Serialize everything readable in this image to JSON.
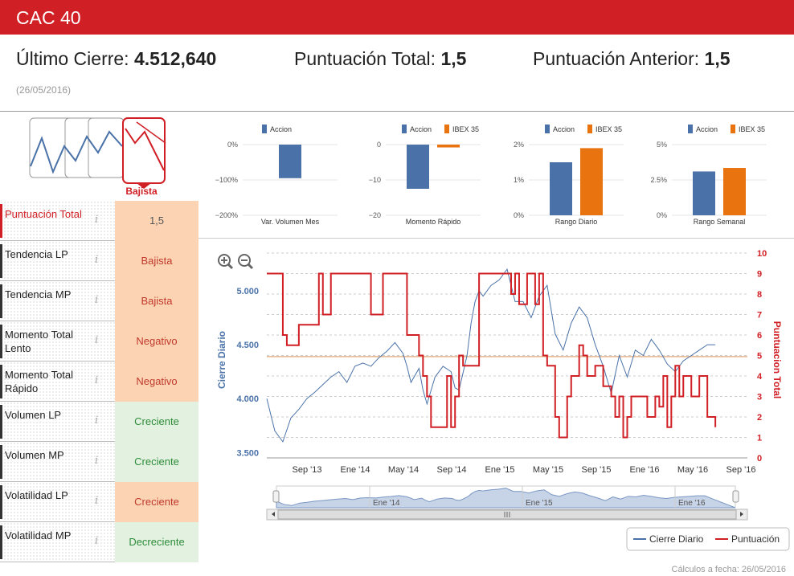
{
  "header": {
    "title": "CAC 40"
  },
  "summary": {
    "close_label": "Último Cierre:",
    "close_value": "4.512,640",
    "score_label": "Puntuación Total:",
    "score_value": "1,5",
    "prev_label": "Puntuación Anterior:",
    "prev_value": "1,5",
    "date": "(26/05/2016)"
  },
  "trend_badge": {
    "label": "Bajista"
  },
  "indicators": [
    {
      "label": "Puntuación Total",
      "value": "1,5",
      "status": "neutral"
    },
    {
      "label": "Tendencia LP",
      "value": "Bajista",
      "status": "bad"
    },
    {
      "label": "Tendencia MP",
      "value": "Bajista",
      "status": "bad"
    },
    {
      "label": "Momento Total Lento",
      "value": "Negativo",
      "status": "bad"
    },
    {
      "label": "Momento Total Rápido",
      "value": "Negativo",
      "status": "bad"
    },
    {
      "label": "Volumen LP",
      "value": "Creciente",
      "status": "good"
    },
    {
      "label": "Volumen MP",
      "value": "Creciente",
      "status": "good"
    },
    {
      "label": "Volatilidad LP",
      "value": "Creciente",
      "status": "bad"
    },
    {
      "label": "Volatilidad MP",
      "value": "Decreciente",
      "status": "good"
    }
  ],
  "info_glyph": "i",
  "colors": {
    "accent": "#d01f25",
    "accion": "#4a72a8",
    "ibex": "#e8730f",
    "bad_bg": "#fcd4b4",
    "good_bg": "#e3f2e0"
  },
  "mini_charts": [
    {
      "legend": [
        "Accion"
      ],
      "xlabel": "Var. Volumen Mes",
      "ticks": [
        "0%",
        "−100%",
        "−200%"
      ],
      "ylim": [
        -200,
        0
      ],
      "values": [
        -95
      ]
    },
    {
      "legend": [
        "Accion",
        "IBEX 35"
      ],
      "xlabel": "Momento Rápido",
      "ticks": [
        "0",
        "−10",
        "−20"
      ],
      "ylim": [
        -20,
        0
      ],
      "values": [
        -12.5,
        -0.8
      ]
    },
    {
      "legend": [
        "Accion",
        "IBEX 35"
      ],
      "xlabel": "Rango Diario",
      "ticks": [
        "2%",
        "1%",
        "0%"
      ],
      "ylim": [
        0,
        2
      ],
      "values": [
        1.5,
        1.9
      ]
    },
    {
      "legend": [
        "Accion",
        "IBEX 35"
      ],
      "xlabel": "Rango Semanal",
      "ticks": [
        "5%",
        "2.5%",
        "0%"
      ],
      "ylim": [
        0,
        5
      ],
      "values": [
        3.1,
        3.35
      ]
    }
  ],
  "chart_data": {
    "type": "line",
    "ylabel_left": "Cierre Diario",
    "ylabel_right": "Puntuacion Total",
    "left_ticks": [
      "5.000",
      "4.500",
      "4.000",
      "3.500"
    ],
    "left_ylim": [
      3450,
      5350
    ],
    "right_ticks": [
      "10",
      "9",
      "8",
      "7",
      "6",
      "5",
      "4",
      "3",
      "2",
      "1",
      "0"
    ],
    "right_ylim": [
      0,
      10
    ],
    "x_ticks": [
      "Sep '13",
      "Ene '14",
      "May '14",
      "Sep '14",
      "Ene '15",
      "May '15",
      "Sep '15",
      "Ene '16",
      "May '16",
      "Sep '16"
    ],
    "navigator_ticks": [
      "Ene '14",
      "Ene '15",
      "Ene '16"
    ],
    "reference_line": 4390,
    "series": [
      {
        "name": "Cierre Diario",
        "x": [
          0,
          2,
          4,
          6,
          8,
          10,
          12,
          14,
          16,
          18,
          20,
          22,
          24,
          26,
          28,
          30,
          32,
          34,
          35,
          36,
          38,
          39,
          40,
          42,
          44,
          46,
          47,
          48,
          50,
          51,
          52,
          53,
          54,
          56,
          58,
          60,
          62,
          64,
          66,
          68,
          70,
          72,
          74,
          76,
          78,
          80,
          82,
          84,
          86,
          88,
          90,
          92,
          94,
          96,
          98,
          100,
          102,
          104,
          106,
          108,
          110,
          112
        ],
        "values": [
          4000,
          3700,
          3600,
          3820,
          3900,
          4000,
          4060,
          4130,
          4200,
          4250,
          4150,
          4300,
          4330,
          4300,
          4380,
          4440,
          4520,
          4420,
          4300,
          4150,
          4280,
          4080,
          3950,
          4200,
          4300,
          4250,
          4100,
          4080,
          4400,
          4700,
          4900,
          5000,
          4950,
          5050,
          5100,
          5200,
          4900,
          4900,
          4750,
          4950,
          5050,
          4600,
          4450,
          4700,
          4850,
          4750,
          4500,
          4300,
          4050,
          4400,
          4200,
          4450,
          4400,
          4550,
          4450,
          4320,
          4250,
          4350,
          4400,
          4450,
          4500,
          4500
        ]
      },
      {
        "name": "Puntuación",
        "x": [
          0,
          3,
          4,
          5,
          8,
          13,
          14,
          16,
          25,
          26,
          29,
          31,
          35,
          38,
          39,
          40,
          41,
          45,
          46,
          47,
          48,
          49,
          53,
          59,
          61,
          62,
          63,
          65,
          67,
          68,
          69,
          70,
          72,
          73,
          75,
          76,
          78,
          79,
          80,
          82,
          84,
          86,
          87,
          88,
          89,
          90,
          91,
          93,
          95,
          97,
          98,
          99,
          100,
          101,
          102,
          103,
          104,
          106,
          108,
          110,
          112
        ],
        "values": [
          9,
          9,
          6,
          5.5,
          6.5,
          9,
          7,
          9,
          9,
          7,
          9,
          9,
          6,
          5,
          4,
          3,
          1.5,
          4,
          1.5,
          3,
          5,
          4.5,
          9,
          9,
          8,
          9,
          7.5,
          9,
          7.5,
          9,
          5,
          4.5,
          2,
          1,
          3,
          4,
          5.5,
          5,
          4,
          4.5,
          3.5,
          3,
          2,
          3,
          1,
          2,
          3,
          3,
          2,
          3,
          2.5,
          4,
          1.5,
          3,
          4.5,
          3,
          4,
          3,
          4,
          2,
          1.5
        ]
      }
    ],
    "legend": [
      "Cierre Diario",
      "Puntuación"
    ],
    "colors": {
      "price": "#4a72a8",
      "score": "#d01f25",
      "ref": "#e8b48a"
    }
  },
  "footer": {
    "text": "Cálculos a fecha: 26/05/2016"
  }
}
